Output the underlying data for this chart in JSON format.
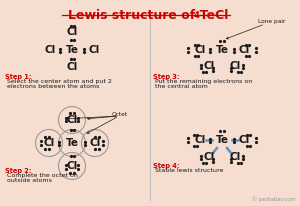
{
  "bg_color": "#f5ddd0",
  "red": "#cc0000",
  "black": "#1a1a1a",
  "blue": "#5599cc",
  "gray": "#999999",
  "title": "Lewis structure of TeCl",
  "title_sub": "4",
  "step1_bold": "Step 1:",
  "step1_text": " Select the center atom and put 2\n electrons between the atoms",
  "step2_bold": "Step 2:",
  "step2_text": " Complete the octet on\n outside atoms",
  "step3_bold": "Step 3:",
  "step3_text": " Put the remaining electrons on\n the central atom",
  "step4_bold": "Step 4:",
  "step4_text": " Stable lewis structure",
  "lone_pair": "Lone pair",
  "octet": "Octet",
  "watermark": "© pediabay.com"
}
